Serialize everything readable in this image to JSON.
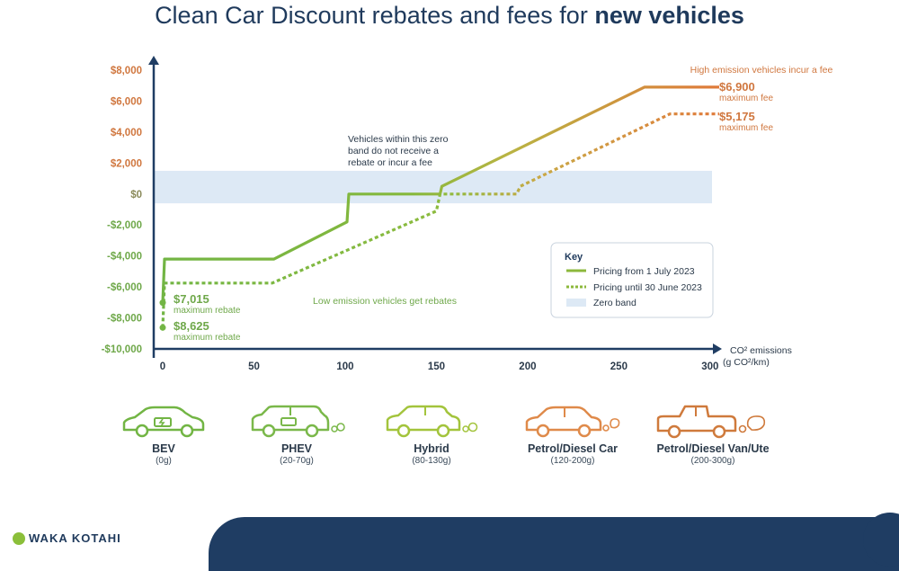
{
  "title": {
    "main": "Clean Car Discount rebates and fees for",
    "bold": "new vehicles"
  },
  "chart_data": {
    "type": "line",
    "title": "Clean Car Discount rebates and fees for new vehicles",
    "xlabel_line1": "CO² emissions",
    "xlabel_line2": "(g CO²/km)",
    "xlim": [
      0,
      305
    ],
    "ylim": [
      -10000,
      8000
    ],
    "x_ticks": [
      0,
      50,
      100,
      150,
      200,
      250,
      300
    ],
    "y_ticks": [
      8000,
      6000,
      4000,
      2000,
      0,
      -2000,
      -4000,
      -6000,
      -8000,
      -10000
    ],
    "y_tick_labels": [
      "$8,000",
      "$6,000",
      "$4,000",
      "$2,000",
      "$0",
      "-$2,000",
      "-$4,000",
      "-$6,000",
      "-$8,000",
      "-$10,000"
    ],
    "zero_band": [
      -600,
      1500
    ],
    "series": [
      {
        "name": "Pricing from 1 July 2023",
        "style": "solid",
        "points": [
          [
            0,
            -7015
          ],
          [
            1,
            -4200
          ],
          [
            61,
            -4200
          ],
          [
            101,
            -1800
          ],
          [
            102,
            0
          ],
          [
            152,
            0
          ],
          [
            153,
            500
          ],
          [
            264,
            6900
          ],
          [
            305,
            6900
          ]
        ]
      },
      {
        "name": "Pricing until 30 June 2023",
        "style": "dotted",
        "points": [
          [
            0,
            -8625
          ],
          [
            1,
            -5750
          ],
          [
            60,
            -5750
          ],
          [
            150,
            -1100
          ],
          [
            152,
            0
          ],
          [
            194,
            0
          ],
          [
            196,
            500
          ],
          [
            278,
            5175
          ],
          [
            305,
            5175
          ]
        ]
      }
    ],
    "annotations": {
      "high": "High emission vehicles incur a fee",
      "low": "Low emission vehicles get rebates",
      "zero_line1": "Vehicles within this zero",
      "zero_line2": "band do not receive a",
      "zero_line3": "rebate or incur a fee",
      "solid_max_fee": "$6,900",
      "dotted_max_fee": "$5,175",
      "max_fee_label": "maximum fee",
      "solid_max_rebate": "$7,015",
      "dotted_max_rebate": "$8,625",
      "max_rebate_label": "maximum rebate"
    },
    "legend": {
      "title": "Key",
      "placement": "right",
      "items": [
        "Pricing from 1 July 2023",
        "Pricing until 30 June 2023",
        "Zero band"
      ]
    },
    "colors": {
      "green": "#72b544",
      "orange": "#e07a3a",
      "band": "#dde9f5",
      "axis": "#1f3d63",
      "label_green": "#6fa84a",
      "label_orange": "#d0773f"
    }
  },
  "vehicles": [
    {
      "name": "BEV",
      "range": "(0g)",
      "icon": "bev-car-icon",
      "color": "#72b544"
    },
    {
      "name": "PHEV",
      "range": "(20-70g)",
      "icon": "phev-suv-icon",
      "color": "#7ab84a"
    },
    {
      "name": "Hybrid",
      "range": "(80-130g)",
      "icon": "hybrid-hatchback-icon",
      "color": "#a3c43c"
    },
    {
      "name": "Petrol/Diesel Car",
      "range": "(120-200g)",
      "icon": "petrol-car-icon",
      "color": "#df8a4a"
    },
    {
      "name": "Petrol/Diesel Van/Ute",
      "range": "(200-300g)",
      "icon": "ute-icon",
      "color": "#cf7a3c"
    }
  ],
  "footer": {
    "logo_text": "WAKA KOTAHI"
  }
}
